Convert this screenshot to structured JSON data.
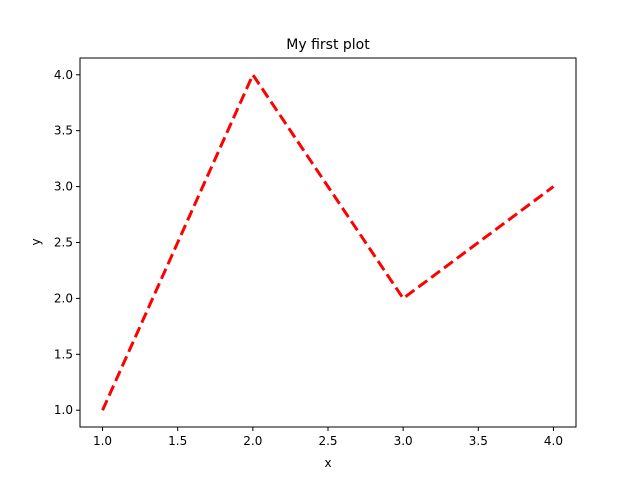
{
  "chart_data": {
    "type": "line",
    "title": "My first plot",
    "xlabel": "x",
    "ylabel": "y",
    "x": [
      1.0,
      2.0,
      3.0,
      4.0
    ],
    "series": [
      {
        "values": [
          1.0,
          4.0,
          2.0,
          3.0
        ],
        "color": "#ff0000",
        "linestyle": "dashed"
      }
    ],
    "xlim": [
      0.85,
      4.15
    ],
    "ylim": [
      0.85,
      4.15
    ],
    "xticks": [
      "1.0",
      "1.5",
      "2.0",
      "2.5",
      "3.0",
      "3.5",
      "4.0"
    ],
    "yticks": [
      "1.0",
      "1.5",
      "2.0",
      "2.5",
      "3.0",
      "3.5",
      "4.0"
    ],
    "grid": false,
    "legend": false
  }
}
